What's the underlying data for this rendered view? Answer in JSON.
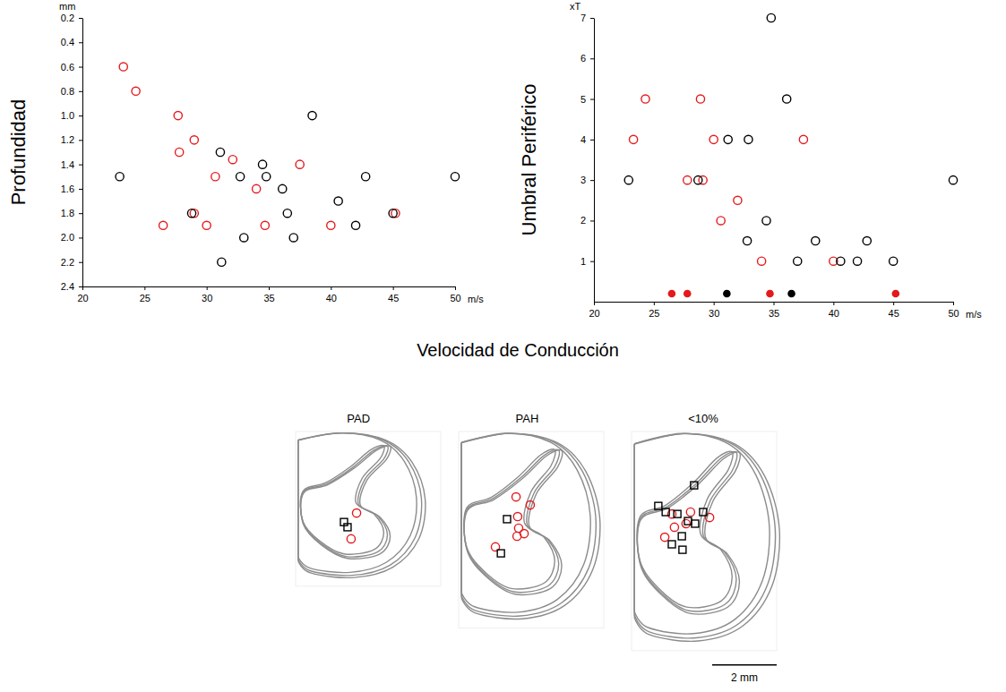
{
  "chart_data": [
    {
      "type": "scatter",
      "ylabel": "Profundidad",
      "y_unit": "mm",
      "x_unit": "m/s",
      "xlabel": "Velocidad de Conducción",
      "xlim": [
        20,
        50
      ],
      "ylim": [
        2.4,
        0.2
      ],
      "xticks": [
        20,
        25,
        30,
        35,
        40,
        45,
        50
      ],
      "yticks": [
        0.2,
        0.4,
        0.6,
        0.8,
        {
          "value": 1,
          "label": "1.0"
        },
        1.2,
        1.4,
        1.6,
        1.8,
        {
          "value": 2,
          "label": "2.0"
        },
        2.2,
        2.4
      ],
      "series": [
        {
          "color": "#e41a1c",
          "marker": "open_circle",
          "x": [
            23.3,
            24.3,
            27.7,
            29.0,
            27.8,
            32.1,
            37.5,
            30.7,
            34.0,
            26.5,
            29.0,
            30.0,
            34.7,
            40.0,
            45.2
          ],
          "values": [
            0.6,
            0.8,
            1.0,
            1.2,
            1.3,
            1.36,
            1.4,
            1.5,
            1.6,
            1.9,
            1.8,
            1.9,
            1.9,
            1.9,
            1.8
          ]
        },
        {
          "color": "#000000",
          "marker": "open_circle",
          "x": [
            23.0,
            31.1,
            34.5,
            32.7,
            34.8,
            38.5,
            36.1,
            28.8,
            36.5,
            40.6,
            42.8,
            50.0,
            42.0,
            45.0,
            33.0,
            37.0,
            31.2
          ],
          "values": [
            1.5,
            1.3,
            1.4,
            1.5,
            1.5,
            1.0,
            1.6,
            1.8,
            1.8,
            1.7,
            1.5,
            1.5,
            1.9,
            1.8,
            2.0,
            2.0,
            2.2
          ]
        }
      ]
    },
    {
      "type": "scatter",
      "ylabel": "Umbral Periférico",
      "y_unit": "xT",
      "x_unit": "m/s",
      "xlim": [
        20,
        50
      ],
      "ylim": [
        0,
        7
      ],
      "xticks": [
        20,
        25,
        30,
        35,
        40,
        45,
        50
      ],
      "yticks": [
        1,
        2,
        3,
        4,
        5,
        6,
        7
      ],
      "series": [
        {
          "color": "#e41a1c",
          "marker": "open_circle",
          "x": [
            23.3,
            24.3,
            28.9,
            27.8,
            29.1,
            30.0,
            32.0,
            30.6,
            34.0,
            37.5,
            40.0
          ],
          "values": [
            4,
            5,
            5,
            3,
            3,
            4,
            2.5,
            2,
            1,
            4,
            1
          ]
        },
        {
          "color": "#000000",
          "marker": "open_circle",
          "x": [
            22.9,
            28.7,
            31.2,
            32.9,
            34.8,
            36.1,
            34.4,
            32.8,
            38.5,
            37.0,
            40.6,
            42.0,
            42.8,
            45.0,
            50.0
          ],
          "values": [
            3,
            3,
            4,
            4,
            7,
            5,
            2,
            1.5,
            1.5,
            1,
            1,
            1,
            1.5,
            1,
            3
          ]
        },
        {
          "color": "#e41a1c",
          "marker": "circle",
          "x": [
            26.5,
            27.8,
            34.7,
            45.2
          ],
          "values": [
            0.2,
            0.2,
            0.2,
            0.2
          ]
        },
        {
          "color": "#000000",
          "marker": "circle",
          "x": [
            31.1,
            36.5
          ],
          "values": [
            0.2,
            0.2
          ]
        }
      ]
    },
    {
      "type": "scatter",
      "title": "PAD",
      "tick_labels": false,
      "xlim": [
        0,
        4.5
      ],
      "ylim": [
        4.8,
        0
      ],
      "series": [
        {
          "color": "#e41a1c",
          "marker": "open_circle",
          "x": [
            1.89,
            1.72
          ],
          "values": [
            2.53,
            3.33
          ]
        },
        {
          "color": "#000000",
          "marker": "open_square",
          "x": [
            1.5,
            1.61
          ],
          "values": [
            2.81,
            2.97
          ]
        }
      ]
    },
    {
      "type": "scatter",
      "title": "PAH",
      "tick_labels": false,
      "xlim": [
        0,
        4.5
      ],
      "ylim": [
        6.1,
        0
      ],
      "series": [
        {
          "color": "#e41a1c",
          "marker": "open_circle",
          "x": [
            1.78,
            2.22,
            1.83,
            1.86,
            2.03,
            1.81,
            1.14
          ],
          "values": [
            2.03,
            2.28,
            2.64,
            3.0,
            3.17,
            3.25,
            3.58
          ]
        },
        {
          "color": "#000000",
          "marker": "open_square",
          "x": [
            1.5,
            1.31
          ],
          "values": [
            2.72,
            3.78
          ]
        }
      ]
    },
    {
      "type": "scatter",
      "title": "<10%",
      "tick_labels": false,
      "xlim": [
        0,
        4.5
      ],
      "ylim": [
        6.8,
        0
      ],
      "scale_bar": {
        "value": 2,
        "label": "2 mm"
      },
      "series": [
        {
          "color": "#e41a1c",
          "marker": "open_circle",
          "x": [
            1.25,
            1.83,
            2.42,
            1.69,
            1.33,
            1.03
          ],
          "values": [
            2.56,
            2.5,
            2.67,
            2.86,
            2.97,
            3.28
          ]
        },
        {
          "color": "#000000",
          "marker": "open_square",
          "x": [
            1.94,
            0.83,
            1.06,
            1.42,
            2.22,
            1.75,
            1.97,
            1.56,
            1.25,
            1.58
          ],
          "values": [
            1.67,
            2.31,
            2.5,
            2.56,
            2.5,
            2.78,
            2.86,
            3.25,
            3.5,
            3.67
          ]
        }
      ]
    }
  ]
}
